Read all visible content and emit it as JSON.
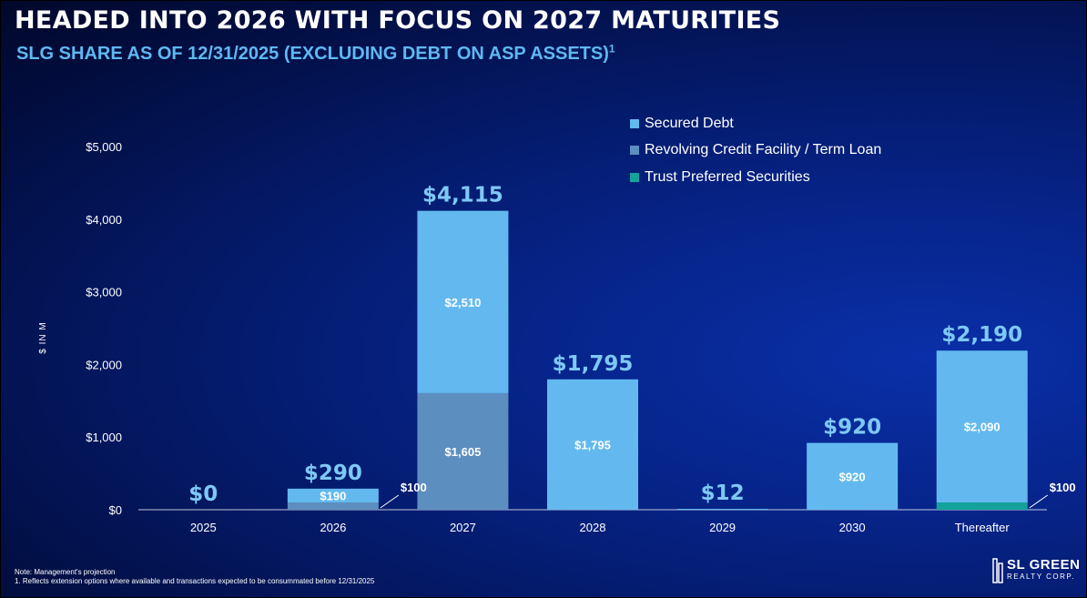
{
  "header": {
    "title": "HEADED INTO 2026 WITH FOCUS ON 2027 MATURITIES",
    "subtitle": "SLG SHARE AS OF 12/31/2025 (EXCLUDING DEBT ON ASP ASSETS)",
    "subtitle_footnote_mark": "1"
  },
  "colors": {
    "secured": "#63b9ef",
    "revolving": "#5d8ec0",
    "trust": "#13a39b",
    "total_label": "#7ec8f5",
    "axis_text": "#ffffff"
  },
  "chart_data": {
    "type": "bar",
    "stacked": true,
    "ylabel": "$ IN M",
    "ylim": [
      0,
      5000
    ],
    "yticks": [
      0,
      1000,
      2000,
      3000,
      4000,
      5000
    ],
    "ytick_labels": [
      "$0",
      "$1,000",
      "$2,000",
      "$3,000",
      "$4,000",
      "$5,000"
    ],
    "categories": [
      "2025",
      "2026",
      "2027",
      "2028",
      "2029",
      "2030",
      "Thereafter"
    ],
    "series": [
      {
        "name": "Trust Preferred Securities",
        "color": "#13a39b",
        "values": [
          0,
          0,
          0,
          0,
          0,
          0,
          100
        ]
      },
      {
        "name": "Revolving Credit Facility / Term Loan",
        "color": "#5d8ec0",
        "values": [
          0,
          100,
          1605,
          0,
          0,
          0,
          0
        ]
      },
      {
        "name": "Secured Debt",
        "color": "#63b9ef",
        "values": [
          0,
          190,
          2510,
          1795,
          12,
          920,
          2090
        ]
      }
    ],
    "totals": [
      0,
      290,
      4115,
      1795,
      12,
      920,
      2190
    ],
    "total_labels": [
      "$0",
      "$290",
      "$4,115",
      "$1,795",
      "$12",
      "$920",
      "$2,190"
    ],
    "segment_labels": [
      {
        "category": "2026",
        "series": "Secured Debt",
        "text": "$190"
      },
      {
        "category": "2027",
        "series": "Revolving Credit Facility / Term Loan",
        "text": "$1,605"
      },
      {
        "category": "2027",
        "series": "Secured Debt",
        "text": "$2,510"
      },
      {
        "category": "2028",
        "series": "Secured Debt",
        "text": "$1,795"
      },
      {
        "category": "2030",
        "series": "Secured Debt",
        "text": "$920"
      },
      {
        "category": "Thereafter",
        "series": "Secured Debt",
        "text": "$2,090"
      }
    ],
    "callouts": [
      {
        "category": "2026",
        "series": "Revolving Credit Facility / Term Loan",
        "text": "$100"
      },
      {
        "category": "Thereafter",
        "series": "Trust Preferred Securities",
        "text": "$100"
      }
    ],
    "legend": {
      "placement": "top-right",
      "entries": [
        "Secured Debt",
        "Revolving Credit Facility / Term Loan",
        "Trust Preferred Securities"
      ]
    },
    "grid": false
  },
  "notes": {
    "line1": "Note: Management's projection",
    "line2": "1. Reflects extension options where available and transactions expected to be consummated before 12/31/2025"
  },
  "logo": {
    "line1": "SL GREEN",
    "line2": "REALTY CORP."
  }
}
